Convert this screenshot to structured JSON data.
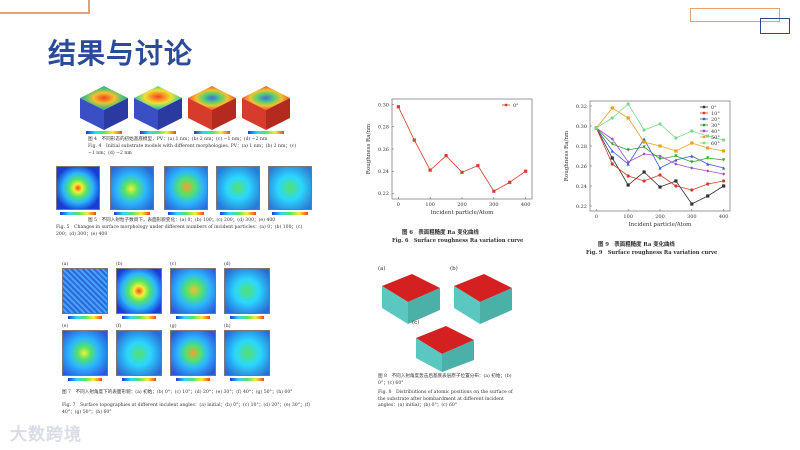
{
  "slide": {
    "title": "结果与讨论",
    "logo_text": "大数跨境",
    "accent_color": "#2a4a9a",
    "deco_color": "#e8a070"
  },
  "fig4": {
    "caption_cn": "图 4　不同形态的初始基底模型，PV：(a) 1 nm；(b) 2 nm；(c) −1 nm；(d) −2 nm",
    "caption_en": "Fig. 4　Initial substrate models with different morphologies, PV：(a) 1 nm；(b) 2 nm；(c) −1 nm；(d) −2 nm"
  },
  "fig5": {
    "caption_cn": "图 5　不同入射粒子数目下，表面形貌变化：(a) 0；(b) 100；(c) 200；(d) 300；(e) 400",
    "caption_en": "Fig. 5　Changes in surface morphology under different numbers of incident particles：(a) 0；(b) 100；(c) 200；(d) 300；(e) 400"
  },
  "fig7": {
    "panel_labels": [
      "(a)",
      "(b)",
      "(c)",
      "(d)",
      "(e)",
      "(f)",
      "(g)",
      "(h)"
    ],
    "caption_cn": "图 7　不同入射角度下的表面形貌：(a) 初始；(b) 0°；(c) 10°；(d) 20°；(e) 30°；(f) 40°；(g) 50°；(h) 60°",
    "caption_en": "Fig. 7　Surface topographies at different incident angles：(a) initial；(b) 0°；(c) 10°；(d) 20°；(e) 30°；(f) 40°；(g) 50°；(h) 60°"
  },
  "fig6": {
    "caption_cn": "图 6　表面粗糙度 Ra 变化曲线",
    "caption_en": "Fig. 6　Surface roughness Ra variation curve"
  },
  "fig9": {
    "caption_cn": "图 9　表面粗糙度 Ra 变化曲线",
    "caption_en": "Fig. 9　Surface roughness Ra variation curve"
  },
  "fig8": {
    "panel_labels": [
      "(a)",
      "(b)",
      "(c)"
    ],
    "caption_cn": "图 8　不同入射角度轰击后基底表层原子位置分布：(a) 初始；(b) 0°；(c) 60°",
    "caption_en": "Fig. 8　Distributions of atomic positions on the surface of the substrate after bombardment at different incident angles：(a) initial；(b) 0°；(c) 60°"
  },
  "chart_data": [
    {
      "type": "line",
      "title": "",
      "xlabel": "Incident particle/Atom",
      "ylabel": "Roughness Ra/nm",
      "x": [
        0,
        50,
        100,
        150,
        200,
        250,
        300,
        350,
        400
      ],
      "series": [
        {
          "name": "0°",
          "color": "#d93b2b",
          "values": [
            0.298,
            0.268,
            0.241,
            0.254,
            0.239,
            0.245,
            0.222,
            0.23,
            0.24
          ]
        }
      ],
      "xticks": [
        0,
        100,
        200,
        300,
        400
      ],
      "yticks": [
        0.22,
        0.24,
        0.26,
        0.28,
        0.3
      ],
      "xlim": [
        -20,
        420
      ],
      "ylim": [
        0.215,
        0.305
      ],
      "legend": "top-right"
    },
    {
      "type": "line",
      "title": "",
      "xlabel": "Incident particle/Atom",
      "ylabel": "Roughness Ra/nm",
      "x": [
        0,
        50,
        100,
        150,
        200,
        250,
        300,
        350,
        400
      ],
      "series": [
        {
          "name": "0°",
          "color": "#333333",
          "values": [
            0.298,
            0.268,
            0.241,
            0.254,
            0.239,
            0.245,
            0.222,
            0.23,
            0.24
          ]
        },
        {
          "name": "10°",
          "color": "#d93b2b",
          "values": [
            0.298,
            0.262,
            0.25,
            0.245,
            0.251,
            0.24,
            0.236,
            0.242,
            0.245
          ]
        },
        {
          "name": "20°",
          "color": "#3b58d6",
          "values": [
            0.298,
            0.275,
            0.262,
            0.287,
            0.258,
            0.266,
            0.27,
            0.262,
            0.258
          ]
        },
        {
          "name": "30°",
          "color": "#2ca02c",
          "values": [
            0.298,
            0.282,
            0.276,
            0.279,
            0.267,
            0.27,
            0.264,
            0.268,
            0.266
          ]
        },
        {
          "name": "40°",
          "color": "#a24ac6",
          "values": [
            0.298,
            0.287,
            0.264,
            0.272,
            0.27,
            0.262,
            0.258,
            0.255,
            0.252
          ]
        },
        {
          "name": "50°",
          "color": "#e8a020",
          "values": [
            0.298,
            0.318,
            0.308,
            0.284,
            0.28,
            0.275,
            0.283,
            0.278,
            0.275
          ]
        },
        {
          "name": "60°",
          "color": "#7ad88a",
          "values": [
            0.298,
            0.308,
            0.322,
            0.296,
            0.302,
            0.288,
            0.295,
            0.29,
            0.286
          ]
        }
      ],
      "xticks": [
        0,
        100,
        200,
        300,
        400
      ],
      "yticks": [
        0.22,
        0.24,
        0.26,
        0.28,
        0.3,
        0.32
      ],
      "xlim": [
        -20,
        420
      ],
      "ylim": [
        0.215,
        0.325
      ],
      "legend": "top-right"
    }
  ]
}
